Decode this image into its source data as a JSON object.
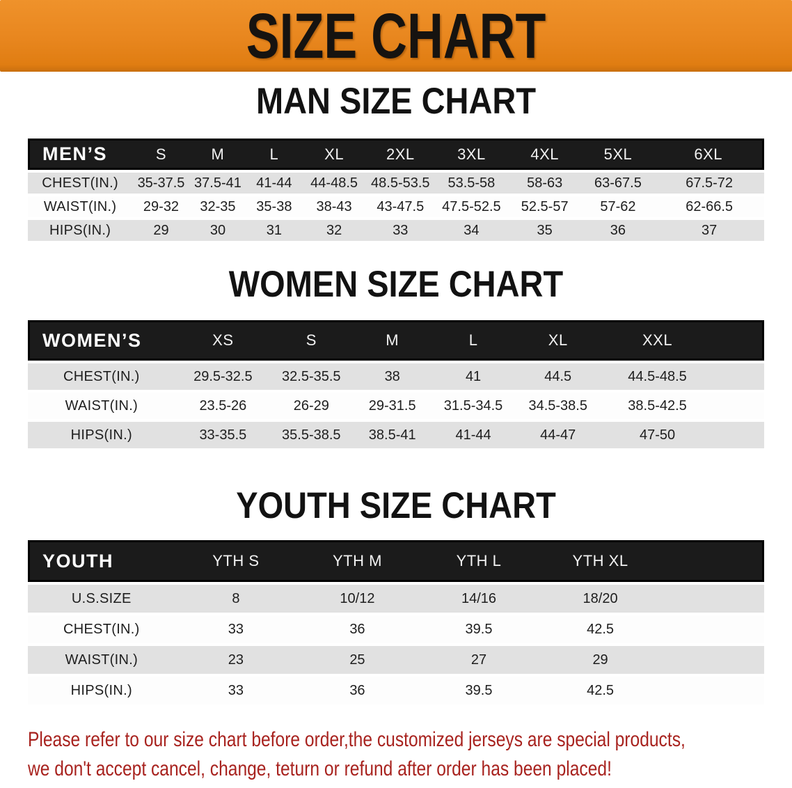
{
  "banner": {
    "title": "SIZE CHART"
  },
  "chart_data": [
    {
      "type": "table",
      "title": "MAN SIZE CHART",
      "header_label": "MEN’S",
      "columns": [
        "S",
        "M",
        "L",
        "XL",
        "2XL",
        "3XL",
        "4XL",
        "5XL",
        "6XL"
      ],
      "rows": [
        {
          "label": "CHEST(IN.)",
          "values": [
            "35-37.5",
            "37.5-41",
            "41-44",
            "44-48.5",
            "48.5-53.5",
            "53.5-58",
            "58-63",
            "63-67.5",
            "67.5-72"
          ]
        },
        {
          "label": "WAIST(IN.)",
          "values": [
            "29-32",
            "32-35",
            "35-38",
            "38-43",
            "43-47.5",
            "47.5-52.5",
            "52.5-57",
            "57-62",
            "62-66.5"
          ]
        },
        {
          "label": "HIPS(IN.)",
          "values": [
            "29",
            "30",
            "31",
            "32",
            "33",
            "34",
            "35",
            "36",
            "37"
          ]
        }
      ]
    },
    {
      "type": "table",
      "title": "WOMEN SIZE CHART",
      "header_label": "WOMEN’S",
      "columns": [
        "XS",
        "S",
        "M",
        "L",
        "XL",
        "XXL"
      ],
      "rows": [
        {
          "label": "CHEST(IN.)",
          "values": [
            "29.5-32.5",
            "32.5-35.5",
            "38",
            "41",
            "44.5",
            "44.5-48.5"
          ]
        },
        {
          "label": "WAIST(IN.)",
          "values": [
            "23.5-26",
            "26-29",
            "29-31.5",
            "31.5-34.5",
            "34.5-38.5",
            "38.5-42.5"
          ]
        },
        {
          "label": "HIPS(IN.)",
          "values": [
            "33-35.5",
            "35.5-38.5",
            "38.5-41",
            "41-44",
            "44-47",
            "47-50"
          ]
        }
      ]
    },
    {
      "type": "table",
      "title": "YOUTH SIZE CHART",
      "header_label": "YOUTH",
      "columns": [
        "YTH S",
        "YTH M",
        "YTH L",
        "YTH XL"
      ],
      "rows": [
        {
          "label": "U.S.SIZE",
          "values": [
            "8",
            "10/12",
            "14/16",
            "18/20"
          ]
        },
        {
          "label": "CHEST(IN.)",
          "values": [
            "33",
            "36",
            "39.5",
            "42.5"
          ]
        },
        {
          "label": "WAIST(IN.)",
          "values": [
            "23",
            "25",
            "27",
            "29"
          ]
        },
        {
          "label": "HIPS(IN.)",
          "values": [
            "33",
            "36",
            "39.5",
            "42.5"
          ]
        }
      ]
    }
  ],
  "footer": {
    "lines": [
      "Please refer to our size chart before order,the customized jerseys are special products,",
      "we don't accept cancel, change, teturn or refund after order has been placed!"
    ]
  },
  "colors": {
    "banner_orange": "#e8861e",
    "banner_orange_light": "#ef922b",
    "header_black": "#1b1b1b",
    "row_gray": "#e1e1e1",
    "row_white": "#fdfdfd",
    "text_black": "#1e1e1e",
    "footer_red": "#a8231f"
  }
}
